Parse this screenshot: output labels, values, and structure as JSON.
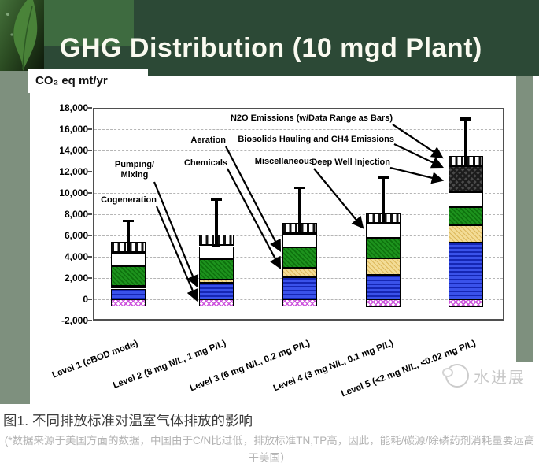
{
  "header": {
    "title": "GHG Distribution (10 mgd Plant)"
  },
  "unit_label": "CO₂ eq mt/yr",
  "watermark": "水进展",
  "caption": "图1.  不同排放标准对温室气体排放的影响",
  "footnote": "(*数据来源于美国方面的数据，中国由于C/N比过低，排放标准TN,TP高，因此，能耗/碳源/除磷药剂消耗量要远高于美国）",
  "chart_data": {
    "type": "bar",
    "stacked": true,
    "title": "GHG Distribution (10 mgd Plant)",
    "ylabel": "CO2 eq mt/yr",
    "ylim": [
      -2000,
      18000
    ],
    "ytick_step": 2000,
    "ytick_labels": [
      "18,000",
      "16,000",
      "14,000",
      "12,000",
      "10,000",
      "8,000",
      "6,000",
      "4,000",
      "2,000",
      "0",
      "-2,000"
    ],
    "grid": "horizontal-dashed",
    "legend_position": "inline-annotations",
    "categories": [
      "Level 1 (cBOD mode)",
      "Level 2 (8 mg N/L, 1 mg P/L)",
      "Level 3 (6 mg N/L, 0.2 mg P/L)",
      "Level 4 (3 mg N/L, 0.1 mg P/L)",
      "Level 5 (<2 mg N/L, <0.02 mg P/L)"
    ],
    "series": [
      {
        "name": "Cogeneration",
        "pattern": "magenta-crosshatch",
        "values": [
          -700,
          -700,
          -700,
          -750,
          -750
        ]
      },
      {
        "name": "Pumping/Mixing",
        "pattern": "blue-horizontal-lines",
        "values": [
          1000,
          1550,
          2050,
          2300,
          5300
        ]
      },
      {
        "name": "Chemicals",
        "pattern": "tan-dots",
        "values": [
          250,
          300,
          900,
          1550,
          1650
        ]
      },
      {
        "name": "Aeration",
        "pattern": "green-dots",
        "values": [
          1850,
          1950,
          1950,
          1950,
          1700
        ]
      },
      {
        "name": "Miscellaneous",
        "pattern": "white",
        "values": [
          1300,
          1200,
          1250,
          1300,
          1450
        ]
      },
      {
        "name": "Deep Well Injection",
        "pattern": "dark-checker",
        "values": [
          0,
          0,
          0,
          0,
          2400
        ]
      },
      {
        "name": "N2O Emissions",
        "pattern": "black-vertical-stripes",
        "values": [
          1000,
          1100,
          1050,
          1000,
          1000
        ]
      }
    ],
    "error_bars": {
      "high": [
        7400,
        9400,
        10500,
        11500,
        17000
      ],
      "low": [
        4450,
        5050,
        6150,
        7150,
        12600
      ]
    },
    "annotations": [
      {
        "id": "pumping",
        "label": "Pumping/\nMixing"
      },
      {
        "id": "cogeneration",
        "label": "Cogeneration"
      },
      {
        "id": "aeration",
        "label": "Aeration"
      },
      {
        "id": "chemicals",
        "label": "Chemicals"
      },
      {
        "id": "miscellaneous",
        "label": "Miscellaneous"
      },
      {
        "id": "n2o",
        "label": "N2O Emissions (w/Data Range as Bars)"
      },
      {
        "id": "biosolids",
        "label": "Biosolids Hauling and CH4 Emissions"
      },
      {
        "id": "deepwell",
        "label": "Deep Well Injection"
      }
    ]
  }
}
